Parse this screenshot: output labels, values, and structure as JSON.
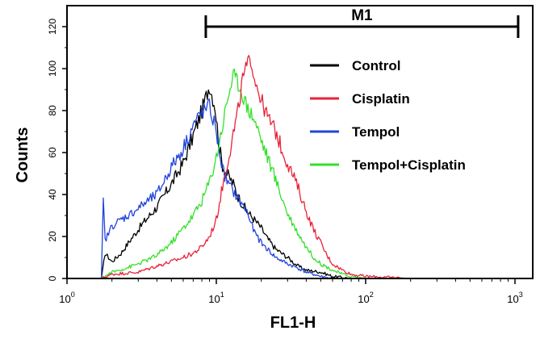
{
  "chart_data": {
    "type": "line",
    "xlabel": "FL1-H",
    "ylabel": "Counts",
    "x_scale": "log",
    "xlim": [
      1,
      1000
    ],
    "ylim": [
      0,
      130
    ],
    "x_ticks": [
      {
        "base": "10",
        "exp": "0",
        "value": 1
      },
      {
        "base": "10",
        "exp": "1",
        "value": 10
      },
      {
        "base": "10",
        "exp": "2",
        "value": 100
      },
      {
        "base": "10",
        "exp": "3",
        "value": 1000
      }
    ],
    "y_ticks": [
      "0",
      "20",
      "40",
      "60",
      "80",
      "100",
      "120"
    ],
    "grid": false,
    "legend_position": "top-right",
    "marker": {
      "label": "M1",
      "x_start": 8.5,
      "x_end": 1050,
      "y": 120
    },
    "series": [
      {
        "name": "Control",
        "color": "#000000",
        "points": [
          [
            1.7,
            0
          ],
          [
            1.8,
            12
          ],
          [
            2,
            8
          ],
          [
            2.3,
            12
          ],
          [
            2.7,
            19
          ],
          [
            3.2,
            26
          ],
          [
            4,
            34
          ],
          [
            5,
            45
          ],
          [
            6,
            55
          ],
          [
            7,
            68
          ],
          [
            8,
            80
          ],
          [
            9,
            92
          ],
          [
            9.8,
            82
          ],
          [
            10.5,
            62
          ],
          [
            11,
            54
          ],
          [
            12,
            49
          ],
          [
            13,
            45
          ],
          [
            14,
            39
          ],
          [
            16,
            32
          ],
          [
            18,
            28
          ],
          [
            20,
            24
          ],
          [
            22,
            19
          ],
          [
            25,
            14
          ],
          [
            30,
            10
          ],
          [
            35,
            6
          ],
          [
            40,
            4
          ],
          [
            50,
            3
          ],
          [
            60,
            1
          ],
          [
            70,
            0.5
          ],
          [
            80,
            0
          ]
        ]
      },
      {
        "name": "Cisplatin",
        "color": "#e8233a",
        "points": [
          [
            1.7,
            0
          ],
          [
            2,
            2
          ],
          [
            3,
            3
          ],
          [
            4,
            6
          ],
          [
            5,
            8
          ],
          [
            6,
            10
          ],
          [
            7,
            12
          ],
          [
            8,
            15
          ],
          [
            9,
            20
          ],
          [
            10,
            28
          ],
          [
            11,
            44
          ],
          [
            12,
            57
          ],
          [
            13,
            69
          ],
          [
            14,
            80
          ],
          [
            15,
            95
          ],
          [
            16,
            101
          ],
          [
            17,
            105
          ],
          [
            18,
            96
          ],
          [
            20,
            85
          ],
          [
            22,
            77
          ],
          [
            25,
            70
          ],
          [
            28,
            60
          ],
          [
            30,
            55
          ],
          [
            35,
            44
          ],
          [
            40,
            32
          ],
          [
            45,
            23
          ],
          [
            50,
            17
          ],
          [
            55,
            11
          ],
          [
            60,
            7
          ],
          [
            70,
            4
          ],
          [
            80,
            2
          ],
          [
            100,
            1
          ],
          [
            150,
            0.5
          ],
          [
            200,
            0
          ]
        ]
      },
      {
        "name": "Tempol",
        "color": "#2244dd",
        "points": [
          [
            1.7,
            0
          ],
          [
            1.75,
            37
          ],
          [
            1.8,
            18
          ],
          [
            2,
            25
          ],
          [
            2.3,
            28
          ],
          [
            2.7,
            31
          ],
          [
            3.2,
            35
          ],
          [
            4,
            40
          ],
          [
            5,
            53
          ],
          [
            6,
            62
          ],
          [
            7,
            73
          ],
          [
            8,
            79
          ],
          [
            9,
            82
          ],
          [
            10,
            70
          ],
          [
            11,
            52
          ],
          [
            12,
            45
          ],
          [
            14,
            38
          ],
          [
            16,
            32
          ],
          [
            18,
            22
          ],
          [
            20,
            17
          ],
          [
            22,
            14
          ],
          [
            25,
            10
          ],
          [
            30,
            7
          ],
          [
            35,
            5
          ],
          [
            40,
            3
          ],
          [
            50,
            1
          ],
          [
            60,
            0
          ]
        ]
      },
      {
        "name": "Tempol+Cisplatin",
        "color": "#33e02a",
        "points": [
          [
            1.7,
            0
          ],
          [
            2,
            3
          ],
          [
            2.5,
            5
          ],
          [
            3,
            7
          ],
          [
            3.5,
            9
          ],
          [
            4,
            11
          ],
          [
            5,
            17
          ],
          [
            6,
            24
          ],
          [
            7,
            30
          ],
          [
            8,
            37
          ],
          [
            9,
            46
          ],
          [
            10,
            58
          ],
          [
            11,
            73
          ],
          [
            12,
            87
          ],
          [
            13,
            97
          ],
          [
            14,
            93
          ],
          [
            15,
            88
          ],
          [
            16,
            82
          ],
          [
            18,
            76
          ],
          [
            20,
            66
          ],
          [
            22,
            58
          ],
          [
            25,
            47
          ],
          [
            28,
            37
          ],
          [
            30,
            31
          ],
          [
            35,
            22
          ],
          [
            40,
            15
          ],
          [
            45,
            10
          ],
          [
            50,
            7
          ],
          [
            60,
            4
          ],
          [
            70,
            2
          ],
          [
            80,
            1
          ],
          [
            100,
            0
          ]
        ]
      }
    ]
  }
}
